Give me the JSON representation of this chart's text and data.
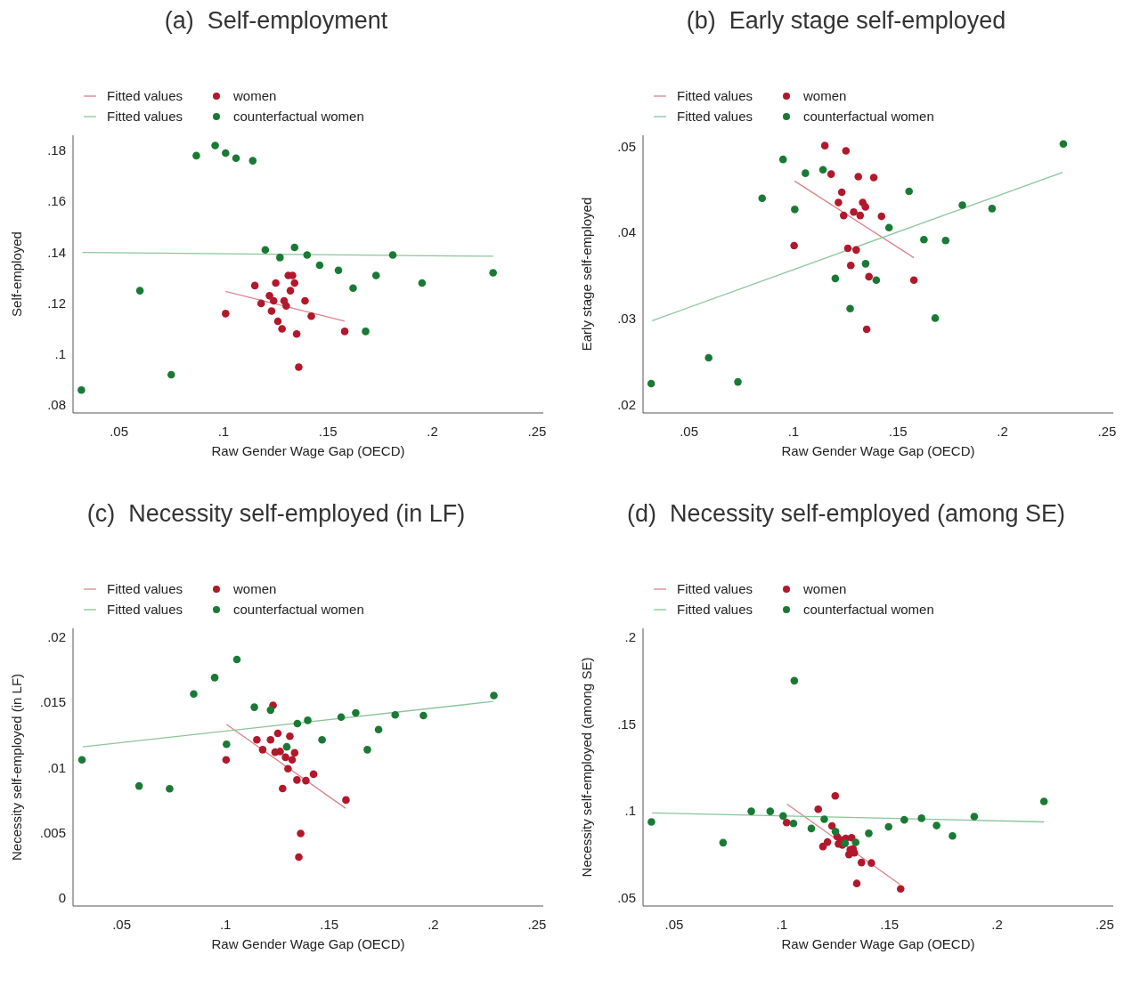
{
  "chart_data": [
    {
      "type": "scatter",
      "title": "(a)  Self-employment",
      "xlabel": "Raw Gender Wage Gap (OECD)",
      "ylabel": "Self-employed",
      "legend": "top left",
      "marker": "circle",
      "xlim": [
        0.028,
        0.253
      ],
      "ylim": [
        0.077,
        0.186
      ],
      "xticks": [
        {
          "value": 0.05,
          "label": ".05"
        },
        {
          "value": 0.1,
          "label": ".1"
        },
        {
          "value": 0.15,
          "label": ".15"
        },
        {
          "value": 0.2,
          "label": ".2"
        },
        {
          "value": 0.25,
          "label": ".25"
        }
      ],
      "yticks": [
        {
          "value": 0.08,
          "label": ".08"
        },
        {
          "value": 0.1,
          "label": ".1"
        },
        {
          "value": 0.12,
          "label": ".12"
        },
        {
          "value": 0.14,
          "label": ".14"
        },
        {
          "value": 0.16,
          "label": ".16"
        },
        {
          "value": 0.18,
          "label": ".18"
        }
      ],
      "series": [
        {
          "name": "Fitted values",
          "type": "line",
          "marker": "none",
          "color": "#d9828c",
          "x": [
            0.101,
            0.158
          ],
          "values": [
            0.1247,
            0.113
          ]
        },
        {
          "name": "women",
          "color": "#b2182b",
          "x": [
            0.101,
            0.115,
            0.118,
            0.122,
            0.123,
            0.124,
            0.125,
            0.126,
            0.128,
            0.129,
            0.13,
            0.131,
            0.132,
            0.133,
            0.134,
            0.135,
            0.136,
            0.139,
            0.142,
            0.158
          ],
          "values": [
            0.116,
            0.127,
            0.12,
            0.123,
            0.117,
            0.121,
            0.128,
            0.113,
            0.11,
            0.121,
            0.119,
            0.131,
            0.125,
            0.131,
            0.128,
            0.108,
            0.095,
            0.121,
            0.115,
            0.109
          ]
        },
        {
          "name": "Fitted values",
          "type": "line",
          "marker": "none",
          "color": "#8cc49a",
          "x": [
            0.0325,
            0.229
          ],
          "values": [
            0.14,
            0.1385
          ]
        },
        {
          "name": "counterfactual women",
          "color": "#1a7a35",
          "x": [
            0.032,
            0.06,
            0.075,
            0.087,
            0.096,
            0.101,
            0.106,
            0.114,
            0.12,
            0.127,
            0.134,
            0.14,
            0.146,
            0.155,
            0.162,
            0.173,
            0.181,
            0.168,
            0.195,
            0.229
          ],
          "values": [
            0.086,
            0.125,
            0.092,
            0.178,
            0.182,
            0.179,
            0.177,
            0.176,
            0.141,
            0.138,
            0.142,
            0.139,
            0.135,
            0.133,
            0.126,
            0.131,
            0.139,
            0.109,
            0.128,
            0.132
          ]
        }
      ]
    },
    {
      "type": "scatter",
      "title": "(b)  Early stage self-employed",
      "xlabel": "Raw Gender Wage Gap (OECD)",
      "ylabel": "Early stage self-employed",
      "legend": "top left",
      "marker": "circle",
      "xlim": [
        0.028,
        0.253
      ],
      "ylim": [
        0.0191,
        0.0513
      ],
      "xticks": [
        {
          "value": 0.05,
          "label": ".05"
        },
        {
          "value": 0.1,
          "label": ".1"
        },
        {
          "value": 0.15,
          "label": ".15"
        },
        {
          "value": 0.2,
          "label": ".2"
        },
        {
          "value": 0.25,
          "label": ".25"
        }
      ],
      "yticks": [
        {
          "value": 0.02,
          "label": ".02"
        },
        {
          "value": 0.03,
          "label": ".03"
        },
        {
          "value": 0.04,
          "label": ".04"
        },
        {
          "value": 0.05,
          "label": ".05"
        }
      ],
      "series": [
        {
          "name": "Fitted values",
          "type": "line",
          "marker": "none",
          "color": "#d9828c",
          "x": [
            0.1005,
            0.1576
          ],
          "values": [
            0.046,
            0.0371
          ]
        },
        {
          "name": "women",
          "color": "#b2182b",
          "x": [
            0.1003,
            0.115,
            0.118,
            0.1215,
            0.1231,
            0.124,
            0.1251,
            0.126,
            0.1274,
            0.1288,
            0.13,
            0.131,
            0.1319,
            0.1331,
            0.1344,
            0.135,
            0.1361,
            0.1384,
            0.1421,
            0.1576
          ],
          "values": [
            0.0385,
            0.0501,
            0.0468,
            0.0435,
            0.0447,
            0.042,
            0.0495,
            0.0382,
            0.0362,
            0.0424,
            0.038,
            0.0465,
            0.042,
            0.0435,
            0.043,
            0.0288,
            0.0349,
            0.0464,
            0.0419,
            0.0345
          ]
        },
        {
          "name": "Fitted values",
          "type": "line",
          "marker": "none",
          "color": "#8cc49a",
          "x": [
            0.0324,
            0.2288
          ],
          "values": [
            0.0298,
            0.047
          ]
        },
        {
          "name": "counterfactual women",
          "color": "#1a7a35",
          "x": [
            0.0319,
            0.0594,
            0.0734,
            0.085,
            0.095,
            0.1006,
            0.1057,
            0.1141,
            0.12,
            0.1271,
            0.1345,
            0.1396,
            0.1457,
            0.1553,
            0.1624,
            0.1678,
            0.1728,
            0.1808,
            0.195,
            0.2291
          ],
          "values": [
            0.0225,
            0.0255,
            0.0227,
            0.044,
            0.0485,
            0.0427,
            0.0469,
            0.0473,
            0.0347,
            0.0312,
            0.0364,
            0.0345,
            0.0406,
            0.0448,
            0.0392,
            0.0301,
            0.0391,
            0.0432,
            0.0428,
            0.0503
          ]
        }
      ]
    },
    {
      "type": "scatter",
      "title": "(c)  Necessity self-employed (in LF)",
      "xlabel": "Raw Gender Wage Gap (OECD)",
      "ylabel": "Necessity self-employed (in LF)",
      "legend": "top left",
      "marker": "circle",
      "xlim": [
        0.0266,
        0.253
      ],
      "ylim": [
        -0.0006,
        0.0207
      ],
      "xticks": [
        {
          "value": 0.05,
          "label": ".05"
        },
        {
          "value": 0.1,
          "label": ".1"
        },
        {
          "value": 0.15,
          "label": ".15"
        },
        {
          "value": 0.2,
          "label": ".2"
        },
        {
          "value": 0.25,
          "label": ".25"
        }
      ],
      "yticks": [
        0,
        {
          "value": 0.005,
          "label": ".005"
        },
        {
          "value": 0.01,
          "label": ".01"
        },
        {
          "value": 0.015,
          "label": ".015"
        },
        {
          "value": 0.02,
          "label": ".02"
        }
      ],
      "series": [
        {
          "name": "Fitted values",
          "type": "line",
          "marker": "none",
          "color": "#d9828c",
          "x": [
            0.1005,
            0.1578
          ],
          "values": [
            0.01333,
            0.0069
          ]
        },
        {
          "name": "women",
          "color": "#b2182b",
          "x": [
            0.1003,
            0.1151,
            0.1179,
            0.1217,
            0.1229,
            0.1239,
            0.1252,
            0.1263,
            0.1275,
            0.1289,
            0.1301,
            0.131,
            0.1321,
            0.1333,
            0.1344,
            0.1353,
            0.1362,
            0.1387,
            0.1424,
            0.158
          ],
          "values": [
            0.01061,
            0.01215,
            0.01139,
            0.01215,
            0.01479,
            0.0112,
            0.01264,
            0.01125,
            0.00841,
            0.01081,
            0.00993,
            0.01242,
            0.01061,
            0.01115,
            0.00907,
            0.00315,
            0.00496,
            0.00902,
            0.00951,
            0.00753
          ]
        },
        {
          "name": "Fitted values",
          "type": "line",
          "marker": "none",
          "color": "#8cc49a",
          "x": [
            0.0313,
            0.2289
          ],
          "values": [
            0.01161,
            0.01509
          ]
        },
        {
          "name": "counterfactual women",
          "color": "#1a7a35",
          "x": [
            0.0309,
            0.0584,
            0.0731,
            0.0847,
            0.0948,
            0.1055,
            0.1139,
            0.1217,
            0.1005,
            0.1295,
            0.1346,
            0.1396,
            0.1465,
            0.1557,
            0.1627,
            0.1683,
            0.1737,
            0.1817,
            0.1953,
            0.2292
          ],
          "values": [
            0.01061,
            0.00861,
            0.00839,
            0.01567,
            0.01692,
            0.01831,
            0.01465,
            0.01443,
            0.01181,
            0.01161,
            0.0134,
            0.01364,
            0.01215,
            0.01389,
            0.01421,
            0.01139,
            0.01293,
            0.01406,
            0.01401,
            0.01555
          ]
        }
      ]
    },
    {
      "type": "scatter",
      "title": "(d)  Necessity self-employed (among SE)",
      "xlabel": "Raw Gender Wage Gap (OECD)",
      "ylabel": "Necessity self-employed (among SE)",
      "legend": "top left",
      "marker": "circle",
      "xlim": [
        0.0355,
        0.254
      ],
      "ylim": [
        0.0452,
        0.2053
      ],
      "xticks": [
        {
          "value": 0.05,
          "label": ".05"
        },
        {
          "value": 0.1,
          "label": ".1"
        },
        {
          "value": 0.15,
          "label": ".15"
        },
        {
          "value": 0.2,
          "label": ".2"
        },
        {
          "value": 0.25,
          "label": ".25"
        }
      ],
      "yticks": [
        {
          "value": 0.05,
          "label": ".05"
        },
        {
          "value": 0.1,
          "label": ".1"
        },
        {
          "value": 0.15,
          "label": ".15"
        },
        {
          "value": 0.2,
          "label": ".2"
        }
      ],
      "series": [
        {
          "name": "Fitted values",
          "type": "line",
          "marker": "none",
          "color": "#d9828c",
          "x": [
            0.1024,
            0.1549
          ],
          "values": [
            0.104,
            0.0576
          ]
        },
        {
          "name": "women",
          "color": "#b2182b",
          "x": [
            0.1022,
            0.1169,
            0.1191,
            0.1212,
            0.1233,
            0.1248,
            0.1257,
            0.1263,
            0.1273,
            0.1281,
            0.1297,
            0.1312,
            0.1318,
            0.1324,
            0.1331,
            0.1337,
            0.1348,
            0.137,
            0.1416,
            0.1552
          ],
          "values": [
            0.0933,
            0.101,
            0.0795,
            0.0821,
            0.0914,
            0.1087,
            0.0852,
            0.081,
            0.0833,
            0.0804,
            0.0842,
            0.0749,
            0.0776,
            0.0846,
            0.0781,
            0.0759,
            0.0582,
            0.0703,
            0.07,
            0.0551
          ]
        },
        {
          "name": "Fitted values",
          "type": "line",
          "marker": "none",
          "color": "#8cc49a",
          "x": [
            0.0397,
            0.2218
          ],
          "values": [
            0.0989,
            0.0937
          ]
        },
        {
          "name": "counterfactual women",
          "color": "#1a7a35",
          "x": [
            0.0394,
            0.0727,
            0.0858,
            0.0946,
            0.1006,
            0.1054,
            0.1058,
            0.1137,
            0.1197,
            0.1249,
            0.1294,
            0.1343,
            0.1404,
            0.1496,
            0.1569,
            0.1649,
            0.1719,
            0.1793,
            0.1894,
            0.2218
          ],
          "values": [
            0.0937,
            0.0817,
            0.0998,
            0.0998,
            0.0971,
            0.0928,
            0.1751,
            0.0899,
            0.0952,
            0.0882,
            0.0814,
            0.0819,
            0.0871,
            0.0909,
            0.0949,
            0.0958,
            0.0916,
            0.0856,
            0.0968,
            0.1055
          ]
        }
      ]
    }
  ]
}
